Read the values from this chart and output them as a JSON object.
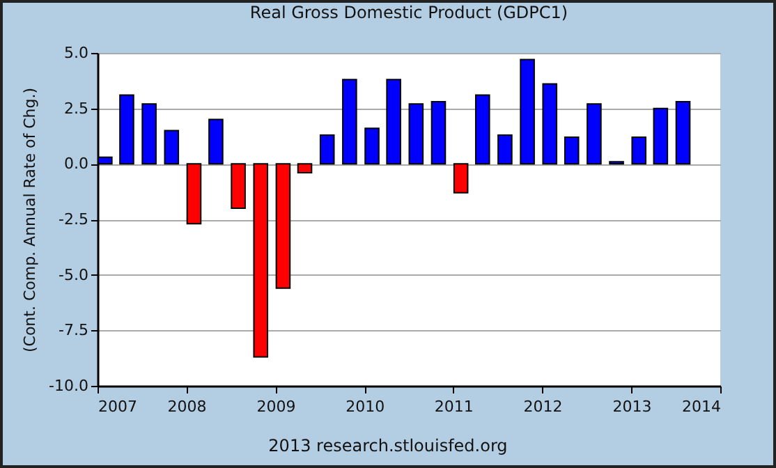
{
  "chart_data": {
    "type": "bar",
    "title": "Real Gross Domestic Product (GDPC1)",
    "ylabel": "(Cont. Comp. Annual Rate of Chg.)",
    "x": [
      "2007-02-01",
      "2007-05-01",
      "2007-08-01",
      "2007-11-01",
      "2008-02-01",
      "2008-05-01",
      "2008-08-01",
      "2008-11-01",
      "2009-02-01",
      "2009-05-01",
      "2009-08-01",
      "2009-11-01",
      "2010-02-01",
      "2010-05-01",
      "2010-08-01",
      "2010-11-01",
      "2011-02-01",
      "2011-05-01",
      "2011-08-01",
      "2011-11-01",
      "2012-02-01",
      "2012-05-01",
      "2012-08-01",
      "2012-11-01",
      "2013-02-01",
      "2013-05-01",
      "2013-08-01"
    ],
    "values": [
      0.3,
      3.1,
      2.7,
      1.5,
      -2.7,
      2.0,
      -2.0,
      -8.7,
      -5.6,
      -0.4,
      1.3,
      3.8,
      1.6,
      3.8,
      2.7,
      2.8,
      -1.3,
      3.1,
      1.3,
      4.7,
      3.6,
      1.2,
      2.7,
      0.1,
      1.2,
      2.5,
      2.8
    ],
    "colors": [
      "#0000ff",
      "#0000ff",
      "#0000ff",
      "#0000ff",
      "#ff0000",
      "#0000ff",
      "#ff0000",
      "#ff0000",
      "#ff0000",
      "#ff0000",
      "#0000ff",
      "#0000ff",
      "#0000ff",
      "#0000ff",
      "#0000ff",
      "#0000ff",
      "#ff0000",
      "#0000ff",
      "#0000ff",
      "#0000ff",
      "#0000ff",
      "#0000ff",
      "#0000ff",
      "#0000ff",
      "#0000ff",
      "#0000ff",
      "#0000ff"
    ],
    "xlim": [
      "2007",
      "2014"
    ],
    "xticks": [
      "2007",
      "2008",
      "2009",
      "2010",
      "2011",
      "2012",
      "2013",
      "2014"
    ],
    "ylim": [
      -10,
      5
    ],
    "yticks": [
      {
        "value": -10,
        "label": "-10.0"
      },
      {
        "value": -7.5,
        "label": "-7.5"
      },
      {
        "value": -5,
        "label": "-5.0"
      },
      {
        "value": -2.5,
        "label": "-2.5"
      },
      {
        "value": 0,
        "label": "0.0"
      },
      {
        "value": 2.5,
        "label": "2.5"
      },
      {
        "value": 5,
        "label": "5.0"
      }
    ],
    "grid": "y",
    "legend": false,
    "annotations": [
      "2013 research.stlouisfed.org"
    ]
  }
}
